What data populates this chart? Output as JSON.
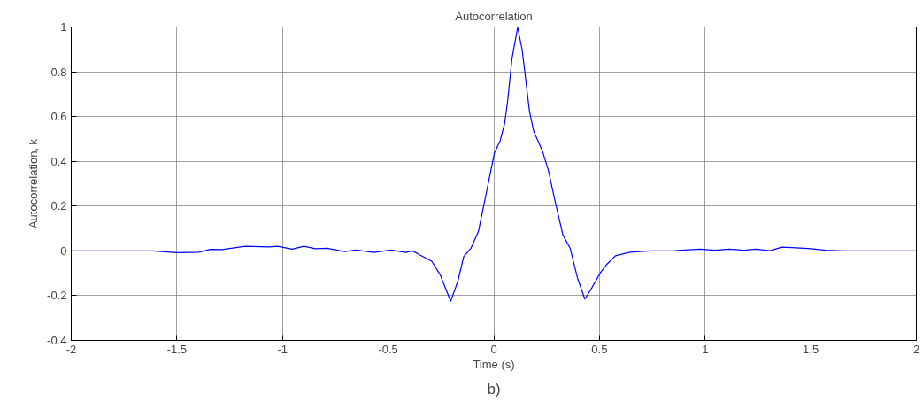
{
  "chart_data": {
    "type": "line",
    "title": "Autocorrelation",
    "xlabel": "Time (s)",
    "ylabel": "Autocorrelation, k",
    "annotations": [
      "b)"
    ],
    "x": [
      -2.0,
      -1.617,
      -1.5,
      -1.396,
      -1.341,
      -1.286,
      -1.175,
      -1.065,
      -1.023,
      -0.954,
      -0.899,
      -0.844,
      -0.789,
      -0.706,
      -0.651,
      -0.568,
      -0.486,
      -0.418,
      -0.384,
      -0.349,
      -0.294,
      -0.253,
      -0.204,
      -0.17,
      -0.142,
      -0.108,
      -0.073,
      -0.046,
      -0.018,
      0.003,
      0.03,
      0.051,
      0.065,
      0.086,
      0.113,
      0.134,
      0.169,
      0.189,
      0.231,
      0.258,
      0.293,
      0.327,
      0.362,
      0.396,
      0.431,
      0.465,
      0.507,
      0.535,
      0.576,
      0.645,
      0.742,
      0.838,
      0.977,
      1.046,
      1.115,
      1.184,
      1.239,
      1.308,
      1.363,
      1.432,
      1.501,
      1.57,
      1.653,
      1.777,
      2.0
    ],
    "series": [
      {
        "color": "#0000ff",
        "values": [
          0,
          0,
          -0.008,
          -0.006,
          0.007,
          0.006,
          0.021,
          0.018,
          0.021,
          0.008,
          0.021,
          0.01,
          0.012,
          -0.003,
          0.004,
          -0.007,
          0.004,
          -0.007,
          0,
          -0.018,
          -0.046,
          -0.108,
          -0.225,
          -0.135,
          -0.025,
          0.012,
          0.086,
          0.21,
          0.34,
          0.437,
          0.492,
          0.568,
          0.665,
          0.858,
          0.999,
          0.9,
          0.623,
          0.534,
          0.444,
          0.361,
          0.21,
          0.072,
          0.01,
          -0.121,
          -0.215,
          -0.163,
          -0.094,
          -0.06,
          -0.022,
          -0.006,
          0,
          0,
          0.008,
          0.003,
          0.008,
          0.003,
          0.008,
          0.001,
          0.017,
          0.014,
          0.01,
          0.003,
          0,
          0,
          0
        ]
      }
    ],
    "xlim": [
      -2,
      2
    ],
    "ylim": [
      -0.4,
      1
    ],
    "xticks": [
      -2,
      -1.5,
      -1,
      -0.5,
      0,
      0.5,
      1,
      1.5,
      2
    ],
    "yticks": [
      -0.4,
      -0.2,
      0,
      0.2,
      0.4,
      0.6,
      0.8,
      1
    ],
    "grid": true,
    "marker": "none",
    "line_style": "solid"
  }
}
